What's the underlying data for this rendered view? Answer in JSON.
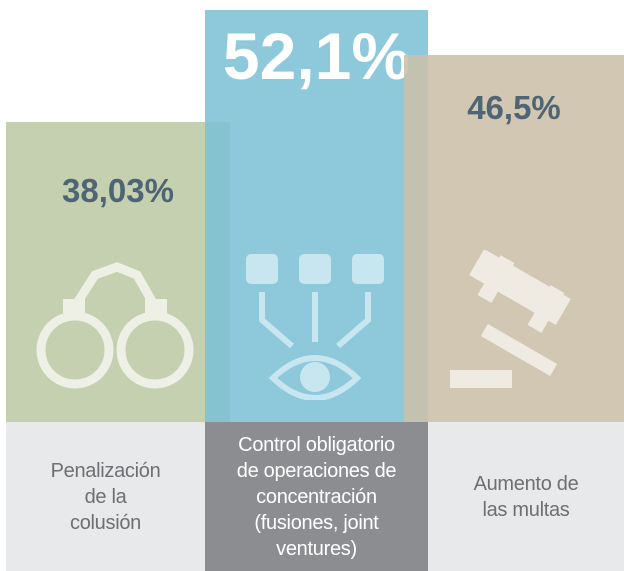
{
  "chart_data": {
    "type": "bar",
    "categories": [
      "Penalización\nde la\ncolusión",
      "Control obligatorio\nde operaciones de\nconcentración\n(fusiones, joint\nventures)",
      "Aumento de\nlas multas"
    ],
    "values": [
      38.03,
      52.1,
      46.5
    ],
    "value_labels": [
      "38,03%",
      "52,1%",
      "46,5%"
    ],
    "colors": [
      "#bccaa4",
      "#7dc0d6",
      "#cbbfa9"
    ]
  }
}
